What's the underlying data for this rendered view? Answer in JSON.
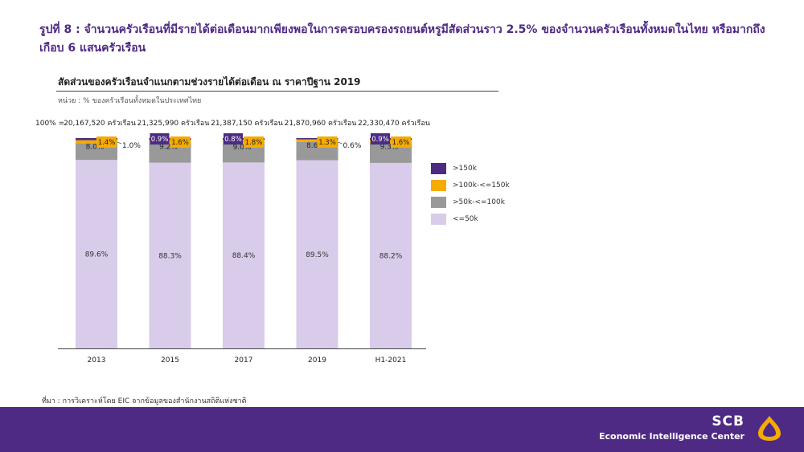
{
  "headline": "รูปที่ 8 : จำนวนครัวเรือนที่มีรายได้ต่อเดือนมากเพียงพอในการครอบครองรถยนต์หรูมีสัดส่วนราว 2.5% ของจำนวนครัวเรือนทั้งหมดในไทย หรือมากถึงเกือบ 6 แสนครัวเรือน",
  "chart_title": "สัดส่วนของครัวเรือนจำแนกตามช่วงรายได้ต่อเดือน ณ ราคาปีฐาน 2019",
  "unit_note": "หน่วย : % ของครัวเรือนทั้งหมดในประเทศไทย",
  "source_note": "ที่มา : การวิเคราะห์โดย EIC จากข้อมูลของสำนักงานสถิติแห่งชาติ",
  "footer": {
    "brand": "SCB",
    "center_name": "Economic Intelligence Center"
  },
  "colors": {
    "gt150k": "#4b2c82",
    "100to150k": "#f5ab00",
    "50to100k": "#999999",
    "le50k": "#d8ccea",
    "footer": "#4f2a84"
  },
  "chart_data": {
    "type": "bar",
    "stacked": true,
    "categories": [
      "2013",
      "2015",
      "2017",
      "2019",
      "H1-2021"
    ],
    "top_label": "100% =",
    "totals": [
      "20,167,520 ครัวเรือน",
      "21,325,990 ครัวเรือน",
      "21,387,150 ครัวเรือน",
      "21,870,960 ครัวเรือน",
      "22,330,470 ครัวเรือน"
    ],
    "ylim": [
      0,
      100
    ],
    "series": [
      {
        "name": "<=50k",
        "values": [
          89.6,
          88.3,
          88.4,
          89.5,
          88.2
        ],
        "labels": [
          "89.6%",
          "88.3%",
          "88.4%",
          "89.5%",
          "88.2%"
        ]
      },
      {
        "name": ">50k-<=100k",
        "values": [
          8.0,
          9.2,
          9.0,
          8.6,
          9.3
        ],
        "labels": [
          "8.0%",
          "9.2%",
          "9.0%",
          "8.6%",
          "9.3%"
        ]
      },
      {
        "name": ">100k-<=150k",
        "values": [
          1.4,
          1.6,
          1.8,
          1.3,
          1.6
        ],
        "labels": [
          "1.4%",
          "1.6%",
          "1.8%",
          "1.3%",
          "1.6%"
        ]
      },
      {
        "name": ">150k",
        "values": [
          1.0,
          0.9,
          0.8,
          0.6,
          0.9
        ],
        "labels": [
          "1.0%",
          "0.9%",
          "0.8%",
          "0.6%",
          "0.9%"
        ]
      }
    ],
    "legend": [
      ">150k",
      ">100k-<=150k",
      ">50k-<=100k",
      "<=50k"
    ],
    "legend_position": "right"
  }
}
